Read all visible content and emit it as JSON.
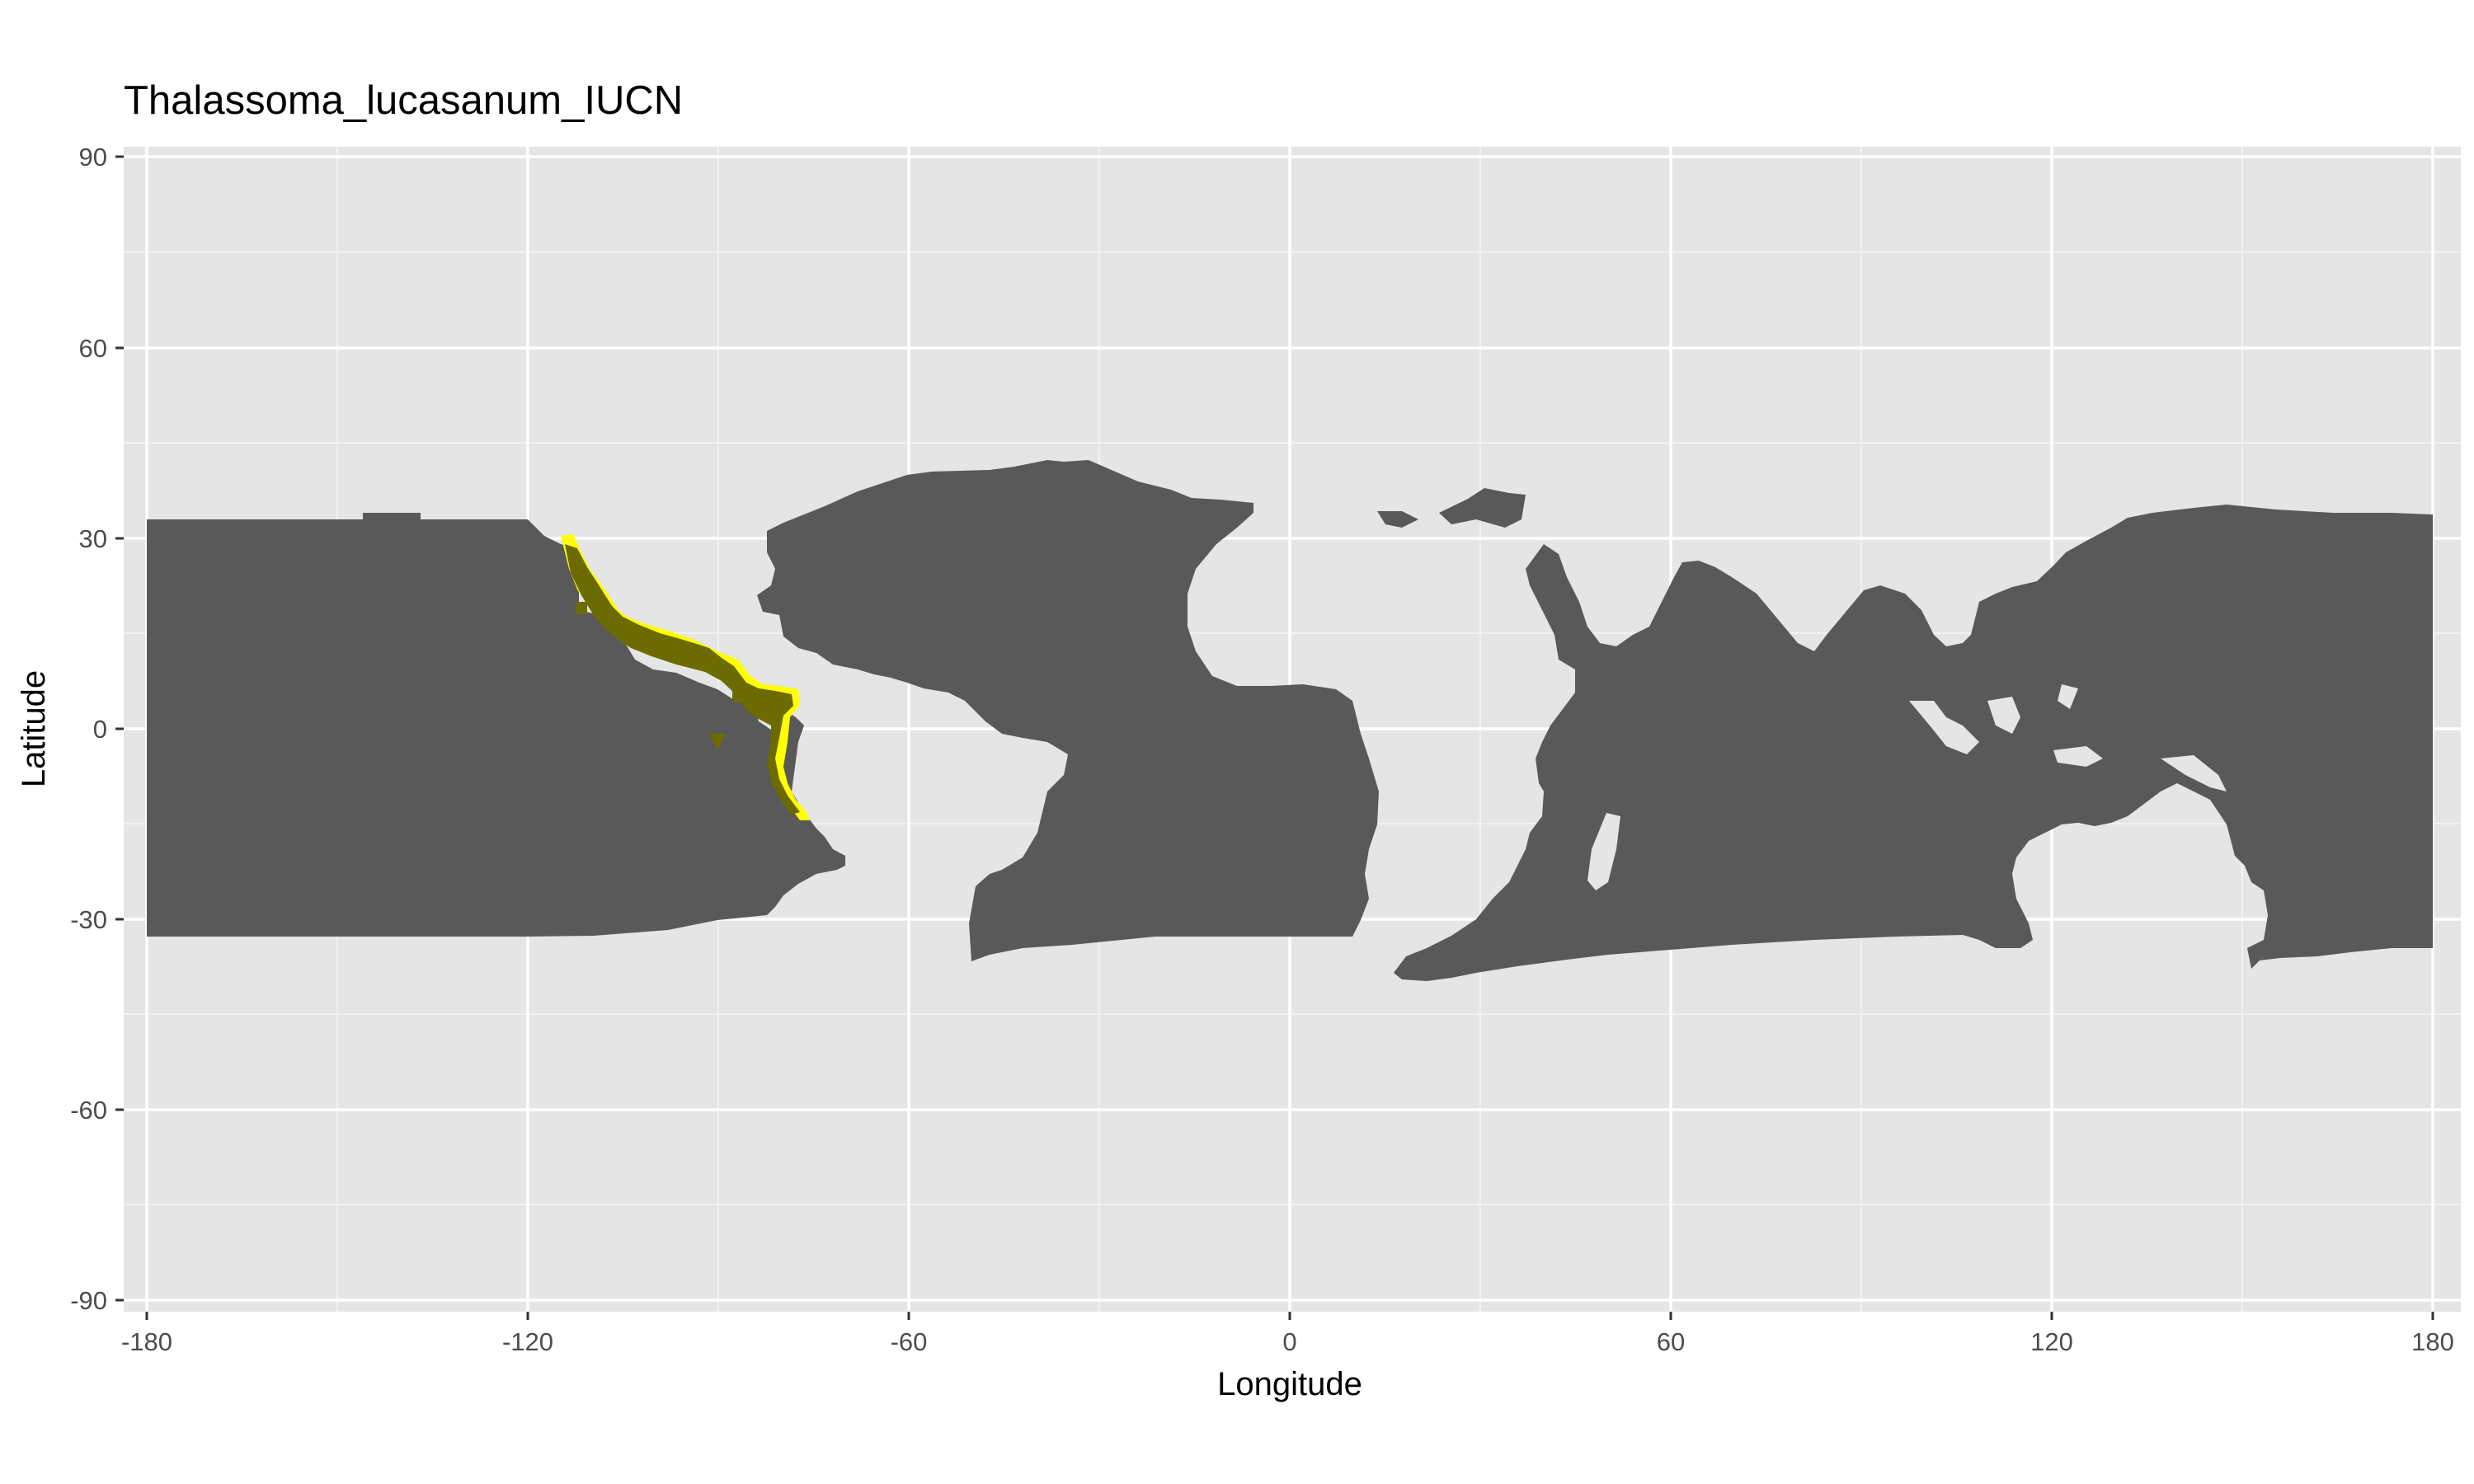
{
  "title": "Thalassoma_lucasanum_IUCN",
  "x_axis": {
    "label": "Longitude",
    "ticks": [
      "-180",
      "-120",
      "-60",
      "0",
      "60",
      "120",
      "180"
    ],
    "range": [
      -180,
      180
    ]
  },
  "y_axis": {
    "label": "Latitude",
    "ticks": [
      "90",
      "60",
      "30",
      "0",
      "-30",
      "-60",
      "-90"
    ],
    "range": [
      -90,
      90
    ]
  },
  "colors": {
    "panel": "#e5e5e5",
    "grid": "#ffffff",
    "ocean_cells": "#595959",
    "range_core": "#6b6b00",
    "range_edge": "#ffff00"
  },
  "map_data": {
    "type": "raster",
    "layers": [
      "ocean cells within 33°S–33°N",
      "species range (IUCN)"
    ],
    "species": "Thalassoma lucasanum",
    "range_lon": [
      -115,
      -80
    ],
    "range_lat": [
      -13,
      31
    ]
  }
}
